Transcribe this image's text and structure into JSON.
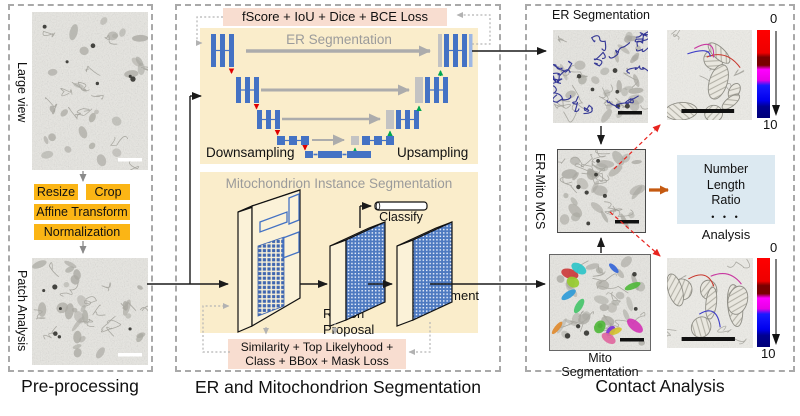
{
  "figure": {
    "panels": {
      "preprocessing": {
        "caption": "Pre-processing",
        "large_view_label": "Large view",
        "patch_label": "Patch Analysis",
        "step_resize": "Resize",
        "step_crop": "Crop",
        "step_affine": "Affine Transform",
        "step_normalization": "Normalization"
      },
      "segmentation": {
        "caption": "ER and Mitochondrion Segmentation",
        "top_loss": "fScore + IoU + Dice + BCE Loss",
        "er_net_title": "ER Segmentation",
        "downsampling_label": "Downsampling",
        "upsampling_label": "Upsampling",
        "mito_net_title": "Mitochondrion Instance Segmentation",
        "region_proposal_label": "Region\nProposal",
        "classify_label": "Classify",
        "segment_label": "Segment",
        "bottom_loss": "Similarity + Top Likelyhood +\nClass + BBox + Mask Loss"
      },
      "contact": {
        "caption": "Contact Analysis",
        "er_seg_title": "ER Segmentation",
        "mito_seg_label": "Mito Segmentation",
        "mcs_label": "ER-Mito MCS",
        "analysis_line1": "Number",
        "analysis_line2": "Length",
        "analysis_line3": "Ratio",
        "analysis_dots": "• • •",
        "analysis_label": "Analysis",
        "colorbar_min": "0",
        "colorbar_max": "10"
      }
    },
    "colors": {
      "step_yellow": "#FBB515",
      "net_cream": "#FAEDCB",
      "loss_pink": "#F8DDD0",
      "analysis_blue": "#DCE9F1",
      "bar_blue": "#4472C4",
      "er_trace_blue": "#2E3192",
      "contact_arrow_orange": "#C55A11",
      "zoom_link_red": "#E8241F",
      "down_arrow_red": "#E00000",
      "up_arrow_green": "#00A651"
    }
  }
}
